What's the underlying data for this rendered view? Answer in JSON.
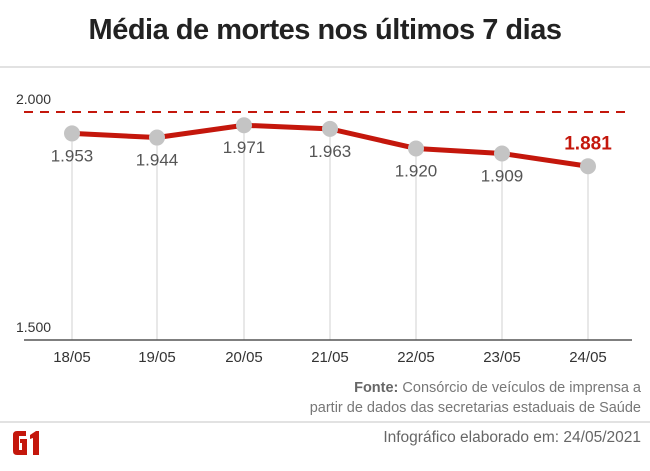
{
  "chart_data": {
    "type": "line",
    "title": "Média de mortes nos últimos 7 dias",
    "categories": [
      "18/05",
      "19/05",
      "20/05",
      "21/05",
      "22/05",
      "23/05",
      "24/05"
    ],
    "values": [
      1953,
      1944,
      1971,
      1963,
      1920,
      1909,
      1881
    ],
    "value_labels": [
      "1.953",
      "1.944",
      "1.971",
      "1.963",
      "1.920",
      "1.909",
      "1.881"
    ],
    "ylim": [
      1500,
      2000
    ],
    "yticks": [
      {
        "value": 1500,
        "label": "1.500"
      },
      {
        "value": 2000,
        "label": "2.000"
      }
    ],
    "reference_line": 2000,
    "colors": {
      "line": "#c4170c",
      "marker": "#c4c4c4",
      "highlight": "#c4170c"
    },
    "xlabel": "",
    "ylabel": ""
  },
  "source": {
    "label": "Fonte:",
    "line1": "Consórcio de veículos de imprensa a",
    "line2": "partir de dados das secretarias estaduais de Saúde"
  },
  "footer": "Infográfico elaborado em: 24/05/2021",
  "logo": "G1"
}
